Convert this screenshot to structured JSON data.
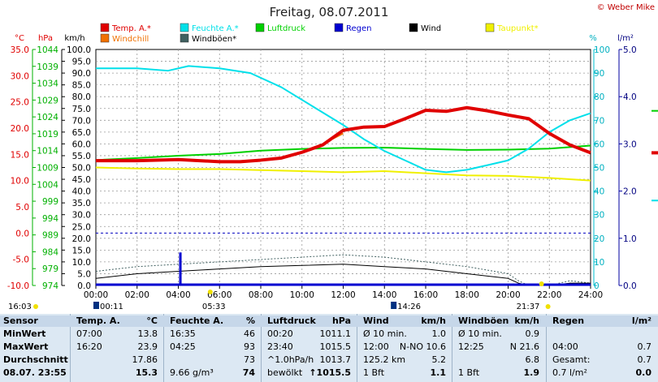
{
  "title": "Freitag, 08.07.2011",
  "copyright": "© Weber Mike",
  "legend": [
    {
      "label": "Temp. A.*",
      "color": "#e00000"
    },
    {
      "label": "Feuchte A.*",
      "color": "#00e0e8"
    },
    {
      "label": "Luftdruck",
      "color": "#00d000"
    },
    {
      "label": "Regen",
      "color": "#0000d0"
    },
    {
      "label": "Wind",
      "color": "#000000"
    },
    {
      "label": "Taupunkt*",
      "color": "#f0f000"
    },
    {
      "label": "Windchill",
      "color": "#f07000"
    },
    {
      "label": "Windböen*",
      "color": "#406060"
    }
  ],
  "axis_units": {
    "temp": "°C",
    "pressure": "hPa",
    "wind": "km/h",
    "humidity": "%",
    "rain": "l/m²"
  },
  "axis_ticks": {
    "temp": [
      "35.0",
      "30.0",
      "25.0",
      "20.0",
      "15.0",
      "10.0",
      "5.0",
      "0.0",
      "-5.0",
      "-10.0"
    ],
    "pressure": [
      "1044",
      "1039",
      "1034",
      "1029",
      "1024",
      "1019",
      "1014",
      "1009",
      "1004",
      "999",
      "994",
      "989",
      "984",
      "979",
      "974"
    ],
    "wind": [
      "100.0",
      "95.0",
      "90.0",
      "85.0",
      "80.0",
      "75.0",
      "70.0",
      "65.0",
      "60.0",
      "55.0",
      "50.0",
      "45.0",
      "40.0",
      "35.0",
      "30.0",
      "25.0",
      "20.0",
      "15.0",
      "10.0",
      "5.0",
      "0.0"
    ],
    "humidity": [
      "100",
      "90",
      "80",
      "70",
      "60",
      "50",
      "40",
      "30",
      "20",
      "10",
      "0"
    ],
    "rain": [
      "5.0",
      "4.0",
      "3.0",
      "2.0",
      "1.0",
      "0.0"
    ],
    "time": [
      "00:00",
      "02:00",
      "04:00",
      "06:00",
      "08:00",
      "10:00",
      "12:00",
      "14:00",
      "16:00",
      "18:00",
      "20:00",
      "22:00",
      "24:00"
    ]
  },
  "sun_moon": {
    "left_time": "16:03",
    "moon1": "00:11",
    "sunrise": "05:33",
    "moon2": "14:26",
    "sunset": "21:37"
  },
  "chart_data": {
    "type": "line",
    "x_unit": "hours",
    "x_range": [
      0,
      24
    ],
    "series": [
      {
        "name": "Temp. A.*",
        "axis": "°C",
        "x": [
          0,
          2,
          4,
          6,
          7,
          8,
          9,
          10,
          11,
          12,
          13,
          14,
          15,
          16,
          17,
          18,
          19,
          20,
          21,
          22,
          23,
          24
        ],
        "y": [
          13.8,
          13.8,
          14.0,
          13.6,
          13.6,
          13.9,
          14.3,
          15.4,
          16.8,
          19.6,
          20.2,
          20.3,
          21.8,
          23.4,
          23.2,
          23.9,
          23.3,
          22.5,
          21.8,
          19.0,
          16.8,
          15.3
        ]
      },
      {
        "name": "Feuchte A.*",
        "axis": "%",
        "x": [
          0,
          2,
          3.5,
          4.5,
          6,
          7.5,
          9,
          10.5,
          12,
          13,
          14,
          15,
          16,
          17,
          18,
          19,
          20,
          21,
          22,
          23,
          24
        ],
        "y": [
          92,
          92,
          91,
          93,
          92,
          90,
          84,
          76,
          68,
          62,
          57,
          53,
          49,
          48,
          49,
          51,
          53,
          58,
          65,
          70,
          73
        ]
      },
      {
        "name": "Luftdruck",
        "axis": "hPa",
        "x": [
          0,
          2,
          4,
          6,
          8,
          10,
          12,
          14,
          16,
          18,
          20,
          22,
          24
        ],
        "y": [
          1011.2,
          1011.8,
          1012.5,
          1013.0,
          1014.0,
          1014.5,
          1014.8,
          1014.9,
          1014.5,
          1014.2,
          1014.3,
          1014.6,
          1015.5
        ]
      },
      {
        "name": "Regen",
        "axis": "l/m²",
        "x": [
          0,
          4,
          4.1,
          24
        ],
        "y": [
          0,
          0,
          0.7,
          0.7
        ]
      },
      {
        "name": "Wind",
        "axis": "km/h",
        "x": [
          0,
          2,
          4,
          6,
          8,
          10,
          12,
          14,
          16,
          18,
          20,
          20.5,
          21,
          22,
          23,
          24
        ],
        "y": [
          3,
          5,
          6,
          7,
          8,
          8.5,
          9,
          8,
          7,
          5,
          3,
          1,
          0,
          0,
          1,
          1
        ]
      },
      {
        "name": "Taupunkt*",
        "axis": "°C",
        "x": [
          0,
          2,
          4,
          6,
          8,
          10,
          12,
          14,
          16,
          18,
          20,
          22,
          24
        ],
        "y": [
          12.5,
          12.3,
          12.2,
          12.2,
          12.0,
          11.8,
          11.6,
          11.8,
          11.4,
          11.0,
          10.9,
          10.5,
          10.0
        ]
      },
      {
        "name": "Windchill",
        "axis": "°C",
        "x": [
          11.5,
          12
        ],
        "y": [
          18.0,
          19.0
        ]
      },
      {
        "name": "Windböen*",
        "axis": "km/h",
        "x": [
          0,
          2,
          4,
          6,
          8,
          10,
          12,
          14,
          16,
          18,
          20,
          20.5,
          21,
          22,
          23,
          24
        ],
        "y": [
          6,
          8,
          9,
          10,
          11,
          12,
          13,
          12,
          10,
          8,
          5,
          2,
          0,
          0,
          2,
          1
        ]
      }
    ]
  },
  "table": {
    "headers": [
      {
        "l": "Sensor",
        "u": ""
      },
      {
        "l": "Temp. A.",
        "u": "°C"
      },
      {
        "l": "Feuchte A.",
        "u": "%"
      },
      {
        "l": "Luftdruck",
        "u": "hPa"
      },
      {
        "l": "Wind",
        "u": "km/h"
      },
      {
        "l": "Windböen",
        "u": "km/h"
      },
      {
        "l": "Regen",
        "u": "l/m²"
      }
    ],
    "rows": [
      {
        "label": "MinWert",
        "cells": [
          [
            "07:00",
            "13.8"
          ],
          [
            "16:35",
            "46"
          ],
          [
            "00:20",
            "1011.1"
          ],
          [
            "Ø 10 min.",
            "1.0"
          ],
          [
            "Ø 10 min.",
            "0.9"
          ],
          [
            "",
            ""
          ]
        ]
      },
      {
        "label": "MaxWert",
        "cells": [
          [
            "16:20",
            "23.9"
          ],
          [
            "04:25",
            "93"
          ],
          [
            "23:40",
            "1015.5"
          ],
          [
            "12:00",
            "N-NO 10.6"
          ],
          [
            "12:25",
            "N 21.6"
          ],
          [
            "04:00",
            "0.7"
          ]
        ]
      },
      {
        "label": "Durchschnitt",
        "cells": [
          [
            "",
            "17.86"
          ],
          [
            "",
            "73"
          ],
          [
            "^1.0hPa/h",
            "1013.7"
          ],
          [
            "125.2 km",
            "5.2"
          ],
          [
            "",
            "6.8"
          ],
          [
            "Gesamt:",
            "0.7"
          ]
        ]
      },
      {
        "label": "08.07. 23:55",
        "cells": [
          [
            "",
            "15.3"
          ],
          [
            "9.66 g/m³",
            "74"
          ],
          [
            "bewölkt",
            "↑1015.5"
          ],
          [
            "1 Bft",
            "1.1"
          ],
          [
            "1 Bft",
            "1.9"
          ],
          [
            "0.7 l/m²",
            "0.0"
          ]
        ]
      }
    ]
  }
}
